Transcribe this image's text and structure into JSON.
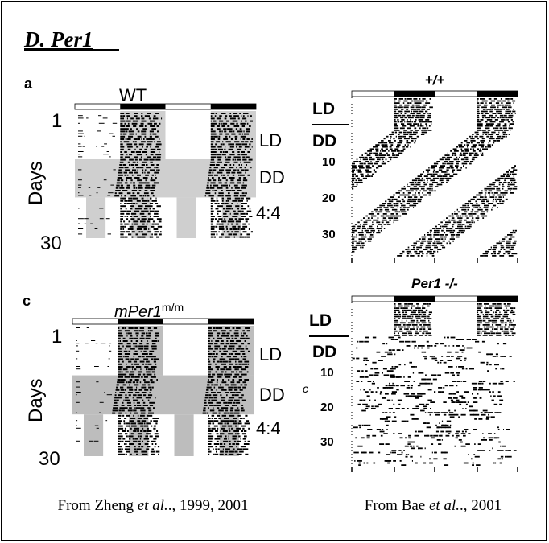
{
  "title": "D. Per1",
  "left": {
    "caption": {
      "before": "From Zheng ",
      "italic": "et al.",
      "after": "., 1999, 2001"
    },
    "panel_a": {
      "letter": "a",
      "label": "WT",
      "day_first": "1",
      "day_last": "30",
      "axis": "Days",
      "conditions": [
        "LD",
        "DD",
        "4:4"
      ]
    },
    "panel_c": {
      "letter": "c",
      "label": "mPer1",
      "label_sup": "m/m",
      "day_first": "1",
      "day_last": "30",
      "axis": "Days",
      "conditions": [
        "LD",
        "DD",
        "4:4"
      ]
    }
  },
  "right": {
    "caption": {
      "before": "From Bae ",
      "italic": "et al.",
      "after": "., 2001"
    },
    "top": {
      "label": "+/+",
      "conditions": [
        "LD",
        "DD"
      ],
      "ticks": [
        "10",
        "20",
        "30"
      ]
    },
    "bottom": {
      "label": "Per1 -/-",
      "conditions": [
        "LD",
        "DD"
      ],
      "ticks": [
        "10",
        "20",
        "30"
      ],
      "side_letter": "c"
    }
  }
}
